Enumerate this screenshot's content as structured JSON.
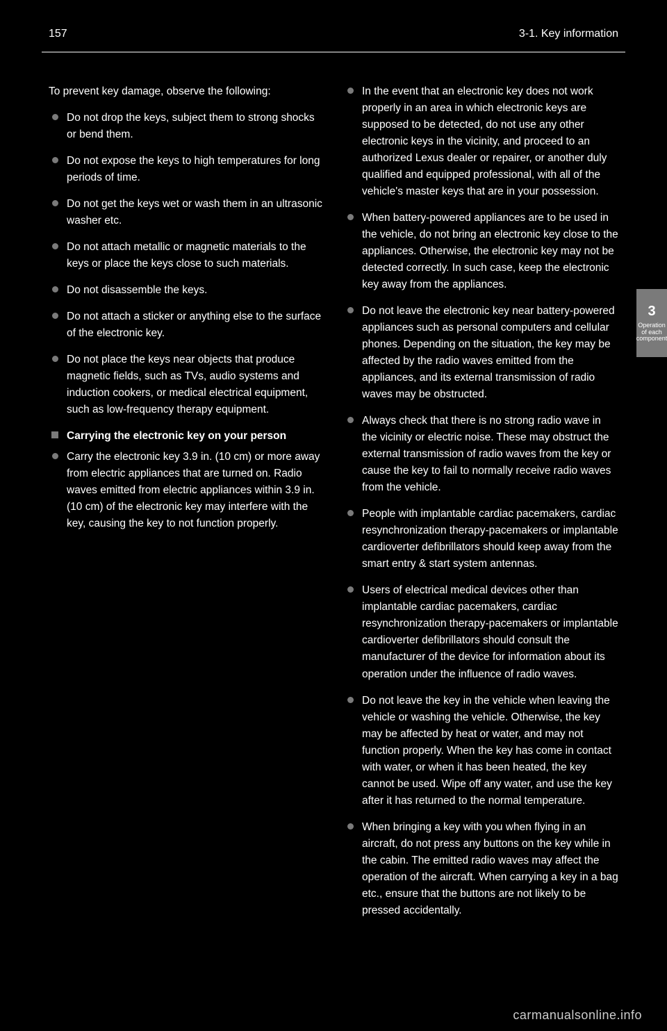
{
  "header": {
    "page_number": "157",
    "section": "3-1. Key information"
  },
  "side_tab": {
    "number": "3",
    "label": "Operation of each component"
  },
  "left_column": {
    "intro": "To prevent key damage, observe the following:",
    "bullets_1": [
      "Do not drop the keys, subject them to strong shocks or bend them.",
      "Do not expose the keys to high temperatures for long periods of time.",
      "Do not get the keys wet or wash them in an ultrasonic washer etc.",
      "Do not attach metallic or magnetic materials to the keys or place the keys close to such materials.",
      "Do not disassemble the keys.",
      "Do not attach a sticker or anything else to the surface of the electronic key.",
      "Do not place the keys near objects that produce magnetic fields, such as TVs, audio systems and induction cookers, or medical electrical equipment, such as low-frequency therapy equipment."
    ],
    "square_heading": "Carrying the electronic key on your person",
    "bullets_2_first": "Carry the electronic key 3.9 in. (10 cm) or more away from electric appliances that are turned on. Radio waves emitted from electric appliances within 3.9 in. (10 cm) of the electronic key may interfere with the key, causing the key to not function properly."
  },
  "right_column": {
    "bullets": [
      "In the event that an electronic key does not work properly in an area in which electronic keys are supposed to be detected, do not use any other electronic keys in the vicinity, and proceed to an authorized Lexus dealer or repairer, or another duly qualified and equipped professional, with all of the vehicle's master keys that are in your possession.",
      "When battery-powered appliances are to be used in the vehicle, do not bring an electronic key close to the appliances. Otherwise, the electronic key may not be detected correctly. In such case, keep the electronic key away from the appliances.",
      "Do not leave the electronic key near battery-powered appliances such as personal computers and cellular phones. Depending on the situation, the key may be affected by the radio waves emitted from the appliances, and its external transmission of radio waves may be obstructed.",
      "Always check that there is no strong radio wave in the vicinity or electric noise. These may obstruct the external transmission of radio waves from the key or cause the key to fail to normally receive radio waves from the vehicle.",
      "People with implantable cardiac pacemakers, cardiac resynchronization therapy-pacemakers or implantable cardioverter defibrillators should keep away from the smart entry & start system antennas.",
      "Users of electrical medical devices other than implantable cardiac pacemakers, cardiac resynchronization therapy-pacemakers or implantable cardioverter defibrillators should consult the manufacturer of the device for information about its operation under the influence of radio waves.",
      "Do not leave the key in the vehicle when leaving the vehicle or washing the vehicle. Otherwise, the key may be affected by heat or water, and may not function properly. When the key has come in contact with water, or when it has been heated, the key cannot be used. Wipe off any water, and use the key after it has returned to the normal temperature.",
      "When bringing a key with you when flying in an aircraft, do not press any buttons on the key while in the cabin. The emitted radio waves may affect the operation of the aircraft. When carrying a key in a bag etc., ensure that the buttons are not likely to be pressed accidentally."
    ]
  },
  "watermark": "carmanualsonline.info"
}
